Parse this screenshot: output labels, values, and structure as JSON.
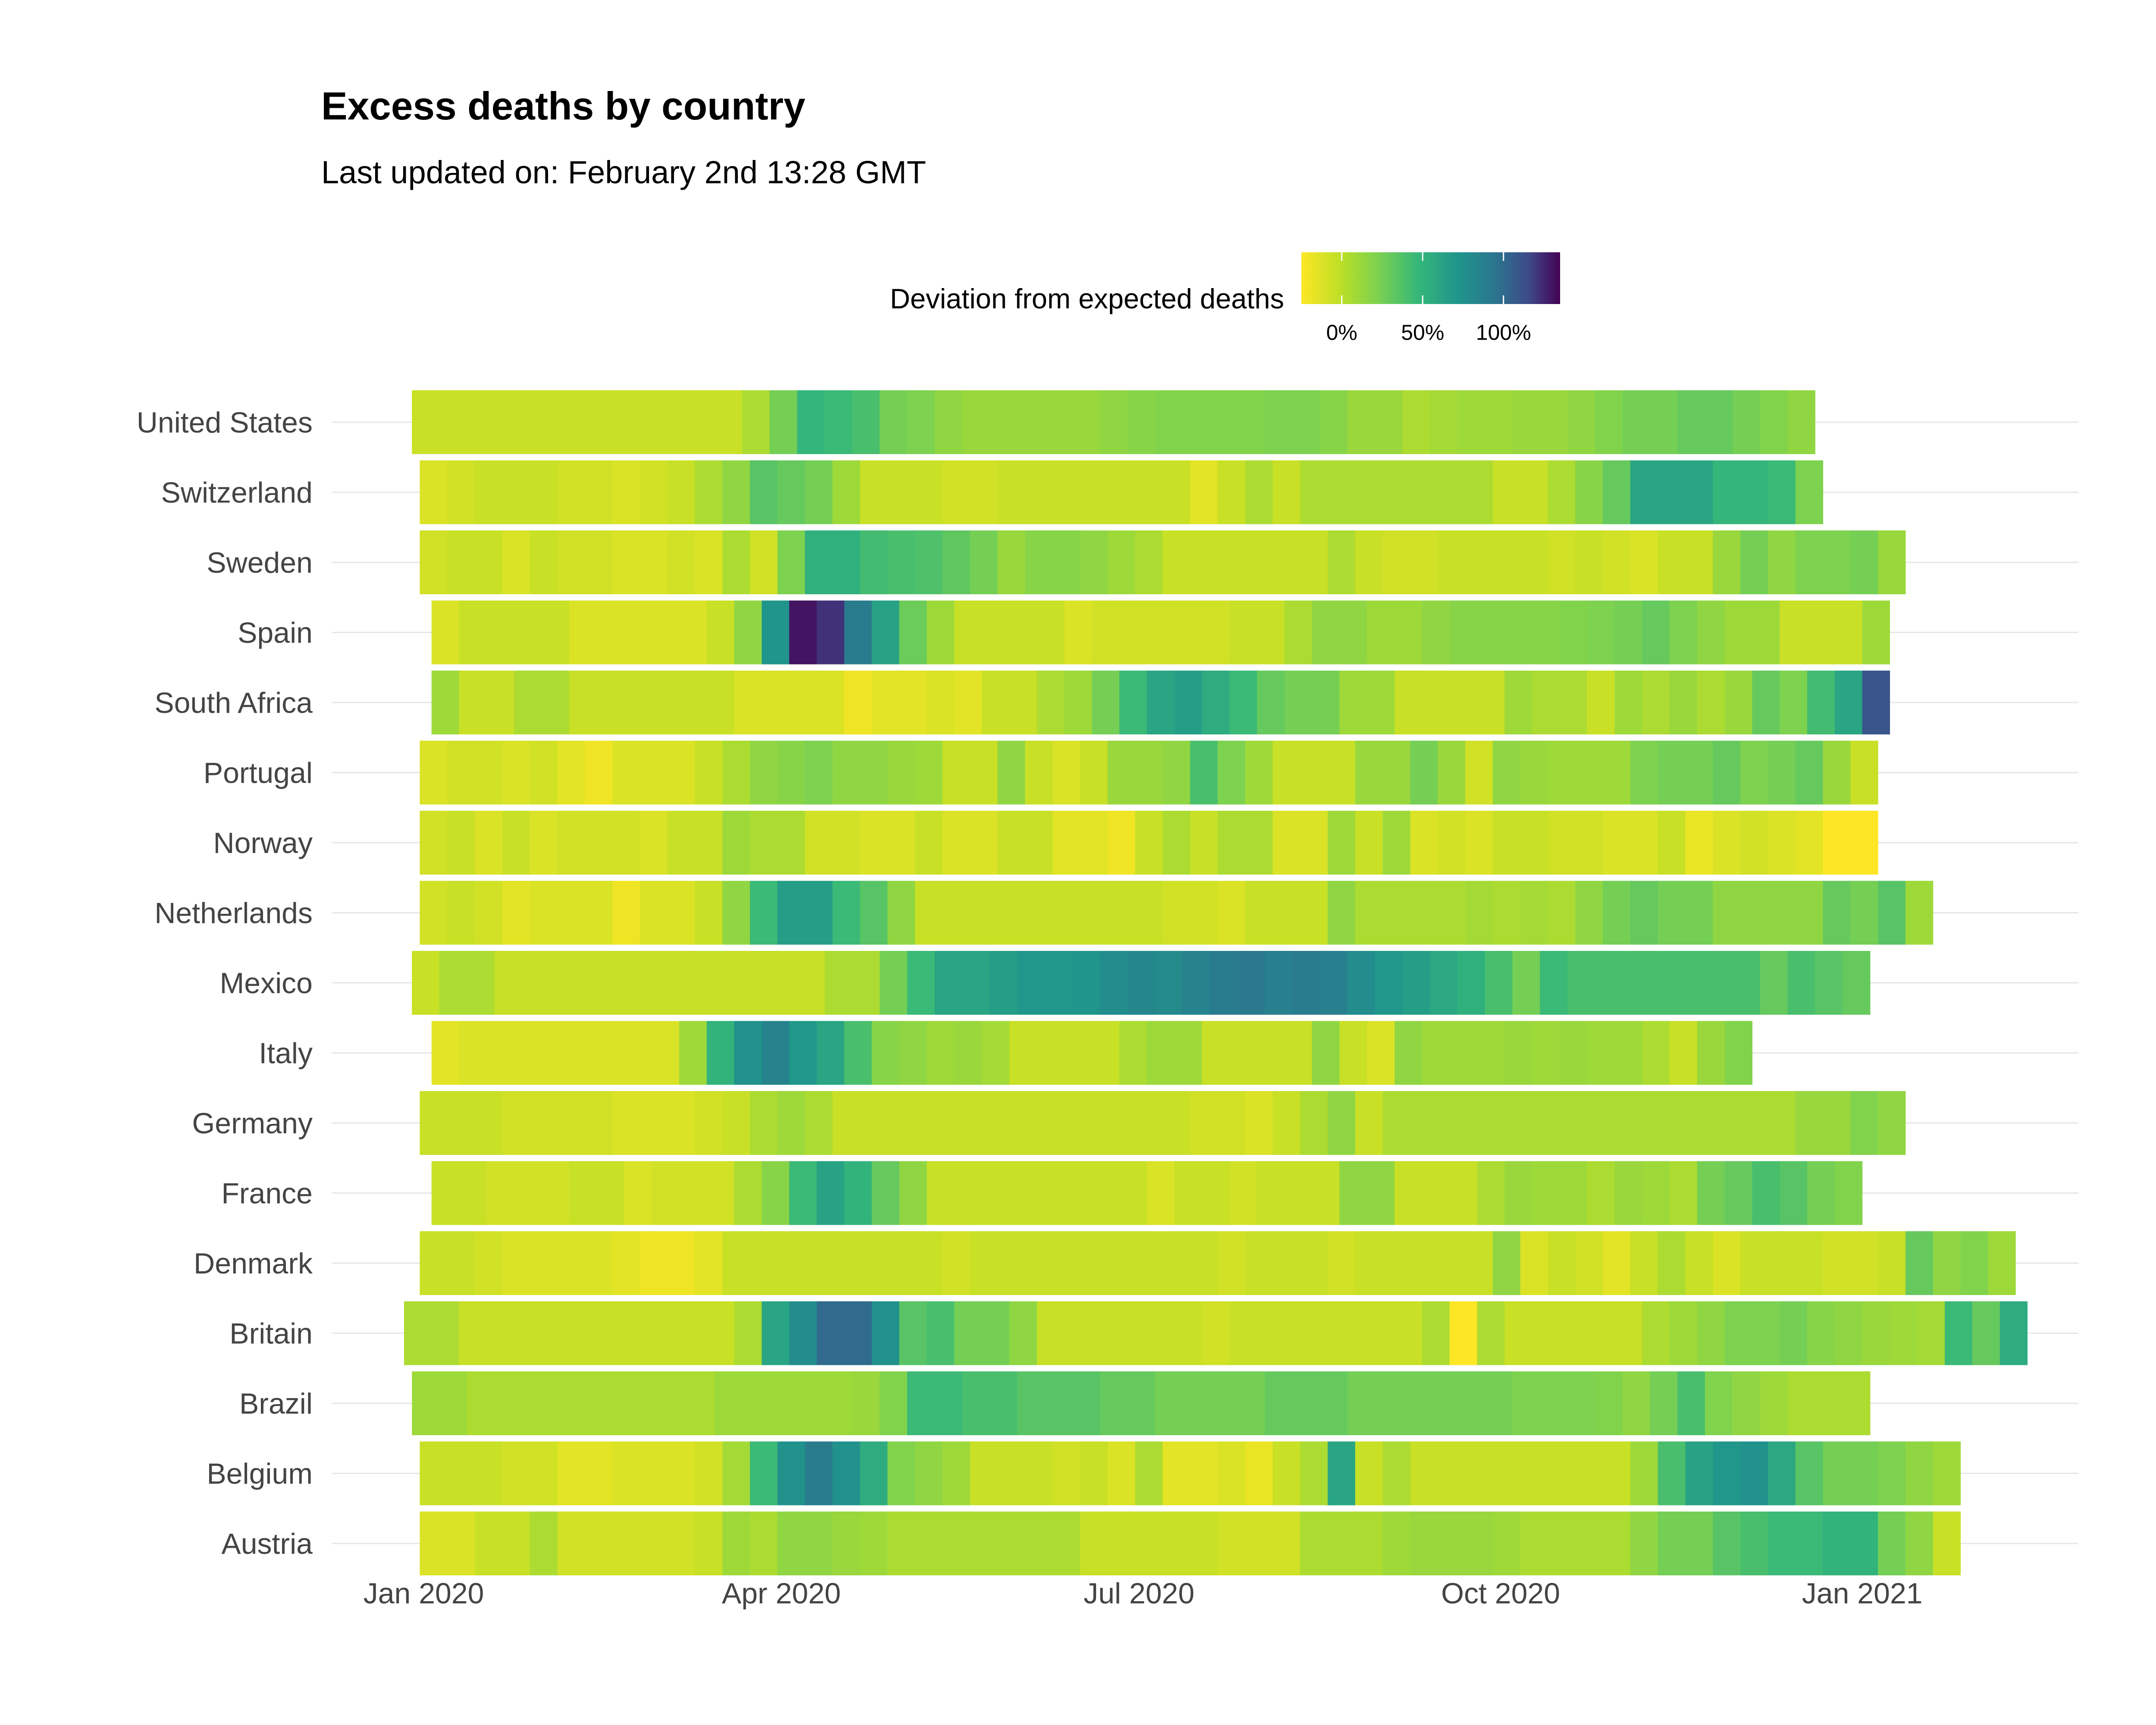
{
  "chart_data": {
    "type": "heatmap",
    "title": "Excess deaths by country",
    "subtitle": "Last updated on: February 2nd 13:28 GMT",
    "legend": {
      "title": "Deviation from expected deaths",
      "placement": "top",
      "tick_labels": [
        "0%",
        "50%",
        "100%"
      ],
      "tick_values": [
        0,
        50,
        100
      ],
      "range": [
        -25,
        135
      ],
      "colormap": "viridis (reversed)"
    },
    "x_axis": {
      "ticks": [
        "2020-01-01",
        "2020-04-01",
        "2020-07-01",
        "2020-10-01",
        "2021-01-01"
      ],
      "tick_labels": [
        "Jan 2020",
        "Apr 2020",
        "Jul 2020",
        "Oct 2020",
        "Jan 2021"
      ],
      "range": [
        "2019-12-27",
        "2021-02-25"
      ]
    },
    "grid": "horizontal",
    "series": [
      {
        "name": "United States",
        "start": "2019-12-29",
        "values": [
          -5,
          -5,
          -5,
          -5,
          -5,
          -5,
          -5,
          -5,
          -5,
          -5,
          -5,
          -5,
          5,
          25,
          48,
          45,
          40,
          25,
          22,
          15,
          12,
          12,
          12,
          12,
          12,
          15,
          18,
          20,
          20,
          20,
          20,
          22,
          22,
          18,
          12,
          12,
          5,
          8,
          10,
          10,
          12,
          12,
          15,
          20,
          25,
          25,
          30,
          30,
          25,
          20,
          15
        ]
      },
      {
        "name": "Switzerland",
        "start": "2019-12-31",
        "values": [
          -12,
          -8,
          -5,
          -5,
          -5,
          -8,
          -8,
          -12,
          -8,
          -5,
          5,
          15,
          35,
          30,
          25,
          10,
          -5,
          -5,
          -5,
          -8,
          -8,
          -5,
          -5,
          -5,
          -5,
          -5,
          -5,
          -5,
          -15,
          -5,
          5,
          -5,
          5,
          5,
          5,
          5,
          5,
          5,
          5,
          -5,
          -5,
          5,
          18,
          30,
          60,
          60,
          60,
          48,
          48,
          45,
          22
        ]
      },
      {
        "name": "Sweden",
        "start": "2019-12-31",
        "values": [
          -8,
          -5,
          -5,
          -12,
          -5,
          -8,
          -8,
          -12,
          -12,
          -8,
          -12,
          5,
          -8,
          22,
          52,
          52,
          42,
          40,
          38,
          32,
          25,
          12,
          18,
          18,
          15,
          10,
          5,
          -5,
          -5,
          -5,
          -5,
          -5,
          -5,
          5,
          -5,
          -8,
          -8,
          -5,
          -5,
          -5,
          -5,
          -8,
          -5,
          -8,
          -12,
          -5,
          -5,
          12,
          25,
          15,
          22,
          22,
          25,
          12
        ]
      },
      {
        "name": "Spain",
        "start": "2020-01-03",
        "values": [
          -12,
          -5,
          -5,
          -5,
          -5,
          -12,
          -12,
          -12,
          -12,
          -12,
          -5,
          15,
          72,
          130,
          122,
          90,
          62,
          28,
          10,
          -5,
          -5,
          -5,
          -5,
          -12,
          -8,
          -8,
          -8,
          -8,
          -8,
          -5,
          -5,
          5,
          15,
          15,
          10,
          10,
          15,
          18,
          18,
          18,
          18,
          20,
          22,
          25,
          30,
          22,
          15,
          10,
          10,
          -5,
          -5,
          -5,
          10
        ]
      },
      {
        "name": "South Africa",
        "start": "2020-01-03",
        "values": [
          10,
          -5,
          -5,
          5,
          5,
          -5,
          -5,
          -5,
          -5,
          -5,
          -5,
          -12,
          -12,
          -12,
          -12,
          -20,
          -15,
          -15,
          -12,
          -15,
          -5,
          -5,
          5,
          10,
          25,
          45,
          60,
          65,
          55,
          45,
          30,
          25,
          25,
          10,
          10,
          -5,
          -5,
          -5,
          -5,
          10,
          5,
          5,
          -5,
          10,
          5,
          12,
          5,
          12,
          30,
          22,
          42,
          60,
          110
        ]
      },
      {
        "name": "Portugal",
        "start": "2019-12-31",
        "values": [
          -12,
          -8,
          -8,
          -12,
          -8,
          -15,
          -20,
          -12,
          -12,
          -12,
          -5,
          5,
          15,
          18,
          22,
          15,
          15,
          12,
          10,
          -5,
          -5,
          15,
          -5,
          -12,
          -5,
          12,
          12,
          15,
          40,
          22,
          10,
          -5,
          -5,
          -5,
          12,
          12,
          25,
          12,
          -8,
          15,
          12,
          10,
          10,
          10,
          22,
          25,
          25,
          30,
          22,
          25,
          30,
          12,
          -5
        ]
      },
      {
        "name": "Norway",
        "start": "2019-12-31",
        "values": [
          -8,
          -5,
          -12,
          -5,
          -12,
          -8,
          -8,
          -8,
          -12,
          -5,
          -5,
          10,
          5,
          5,
          -8,
          -8,
          -12,
          -12,
          -5,
          -12,
          -12,
          -5,
          -5,
          -15,
          -15,
          -20,
          -5,
          5,
          -5,
          5,
          5,
          -12,
          -12,
          10,
          -5,
          10,
          -12,
          -8,
          -12,
          -5,
          -5,
          -8,
          -8,
          -12,
          -12,
          -5,
          -18,
          -12,
          -8,
          -12,
          -15,
          -25,
          -28
        ]
      },
      {
        "name": "Netherlands",
        "start": "2019-12-31",
        "values": [
          -8,
          -5,
          -8,
          -15,
          -12,
          -12,
          -12,
          -20,
          -12,
          -12,
          -5,
          15,
          45,
          65,
          65,
          45,
          35,
          15,
          -5,
          -5,
          -5,
          -5,
          -5,
          -5,
          -5,
          -5,
          -5,
          -8,
          -8,
          -12,
          -5,
          -5,
          -5,
          15,
          5,
          5,
          5,
          5,
          8,
          5,
          8,
          5,
          15,
          25,
          30,
          25,
          25,
          15,
          15,
          15,
          15,
          30,
          25,
          35,
          10
        ]
      },
      {
        "name": "Mexico",
        "start": "2019-12-29",
        "values": [
          -5,
          5,
          5,
          -5,
          -5,
          -5,
          -5,
          -5,
          -5,
          -5,
          -5,
          -5,
          -5,
          -5,
          -5,
          5,
          5,
          25,
          45,
          60,
          60,
          65,
          70,
          70,
          72,
          78,
          82,
          80,
          85,
          90,
          92,
          88,
          90,
          88,
          78,
          70,
          65,
          58,
          52,
          40,
          25,
          45,
          40,
          40,
          40,
          40,
          40,
          40,
          40,
          30,
          40,
          35,
          30
        ]
      },
      {
        "name": "Italy",
        "start": "2020-01-03",
        "values": [
          -15,
          -12,
          -12,
          -12,
          -12,
          -12,
          -12,
          -12,
          -12,
          10,
          50,
          75,
          85,
          70,
          60,
          40,
          18,
          15,
          10,
          12,
          8,
          -5,
          -5,
          -5,
          -5,
          5,
          10,
          10,
          -5,
          -5,
          -5,
          -5,
          15,
          -5,
          -12,
          15,
          10,
          10,
          10,
          12,
          10,
          12,
          10,
          10,
          5,
          -5,
          12,
          20
        ]
      },
      {
        "name": "Germany",
        "start": "2019-12-31",
        "values": [
          -5,
          -5,
          -5,
          -8,
          -8,
          -8,
          -8,
          -12,
          -12,
          -12,
          -8,
          -5,
          5,
          10,
          5,
          -5,
          -5,
          -5,
          -5,
          -5,
          -5,
          -5,
          -5,
          -5,
          -5,
          -5,
          -5,
          -5,
          -8,
          -8,
          -12,
          -5,
          5,
          15,
          -5,
          5,
          5,
          5,
          5,
          5,
          5,
          5,
          5,
          5,
          5,
          5,
          5,
          5,
          5,
          5,
          12,
          12,
          20,
          15
        ]
      },
      {
        "name": "France",
        "start": "2020-01-03",
        "values": [
          -5,
          -5,
          -8,
          -8,
          -8,
          -5,
          -5,
          -12,
          -8,
          -8,
          -8,
          5,
          18,
          45,
          62,
          50,
          30,
          15,
          -5,
          -5,
          -5,
          -5,
          -5,
          -5,
          -5,
          -5,
          -12,
          -5,
          -5,
          -8,
          -5,
          -5,
          -5,
          15,
          15,
          -5,
          -5,
          -5,
          5,
          12,
          10,
          10,
          5,
          12,
          10,
          5,
          25,
          30,
          40,
          35,
          25,
          20
        ]
      },
      {
        "name": "Denmark",
        "start": "2019-12-31",
        "values": [
          -5,
          -5,
          -8,
          -12,
          -12,
          -12,
          -12,
          -15,
          -20,
          -20,
          -15,
          -5,
          -5,
          -5,
          -5,
          -5,
          -5,
          -5,
          -5,
          -8,
          -5,
          -5,
          -5,
          -5,
          -5,
          -5,
          -5,
          -5,
          -5,
          -8,
          -5,
          -5,
          -5,
          -8,
          -5,
          -5,
          -5,
          -5,
          -5,
          15,
          -12,
          -5,
          -8,
          -15,
          -5,
          5,
          -5,
          -12,
          -5,
          -5,
          -5,
          -8,
          -8,
          -5,
          30,
          15,
          20,
          10
        ]
      },
      {
        "name": "Britain",
        "start": "2019-12-27",
        "values": [
          5,
          5,
          -5,
          -5,
          -5,
          -5,
          -5,
          -5,
          -5,
          -5,
          -5,
          -5,
          5,
          60,
          78,
          100,
          100,
          75,
          35,
          40,
          25,
          25,
          15,
          -5,
          -5,
          -5,
          -5,
          -5,
          -5,
          -8,
          -5,
          -5,
          -5,
          -5,
          -5,
          -5,
          -5,
          5,
          -25,
          5,
          -5,
          -5,
          -5,
          -5,
          -5,
          5,
          10,
          15,
          22,
          22,
          25,
          18,
          15,
          12,
          10,
          8,
          45,
          30,
          55
        ]
      },
      {
        "name": "Brazil",
        "start": "2019-12-29",
        "values": [
          10,
          10,
          5,
          5,
          5,
          5,
          5,
          5,
          5,
          5,
          5,
          10,
          10,
          10,
          10,
          10,
          12,
          20,
          45,
          45,
          40,
          40,
          35,
          35,
          35,
          30,
          30,
          25,
          25,
          25,
          25,
          30,
          30,
          30,
          25,
          25,
          25,
          25,
          25,
          25,
          22,
          22,
          22,
          20,
          15,
          25,
          40,
          20,
          15,
          10,
          5,
          5,
          5
        ]
      },
      {
        "name": "Belgium",
        "start": "2019-12-31",
        "values": [
          -5,
          -5,
          -5,
          -8,
          -8,
          -15,
          -15,
          -12,
          -12,
          -12,
          -8,
          8,
          45,
          75,
          90,
          75,
          55,
          20,
          15,
          10,
          -5,
          -5,
          -5,
          -8,
          -5,
          -12,
          5,
          -15,
          -15,
          -12,
          -18,
          -5,
          5,
          60,
          -5,
          5,
          -5,
          -5,
          -5,
          -5,
          -5,
          -5,
          -5,
          -5,
          10,
          40,
          62,
          70,
          75,
          58,
          35,
          25,
          25,
          22,
          15,
          10
        ]
      },
      {
        "name": "Austria",
        "start": "2019-12-31",
        "values": [
          -12,
          -12,
          -5,
          -5,
          5,
          -8,
          -8,
          -8,
          -8,
          -8,
          -5,
          10,
          5,
          15,
          15,
          12,
          10,
          5,
          5,
          5,
          5,
          5,
          5,
          5,
          -5,
          -5,
          -5,
          -5,
          -5,
          -8,
          -8,
          -8,
          5,
          5,
          5,
          10,
          12,
          12,
          12,
          10,
          5,
          5,
          5,
          5,
          15,
          25,
          25,
          35,
          40,
          45,
          45,
          50,
          50,
          25,
          15,
          -5
        ]
      }
    ]
  }
}
